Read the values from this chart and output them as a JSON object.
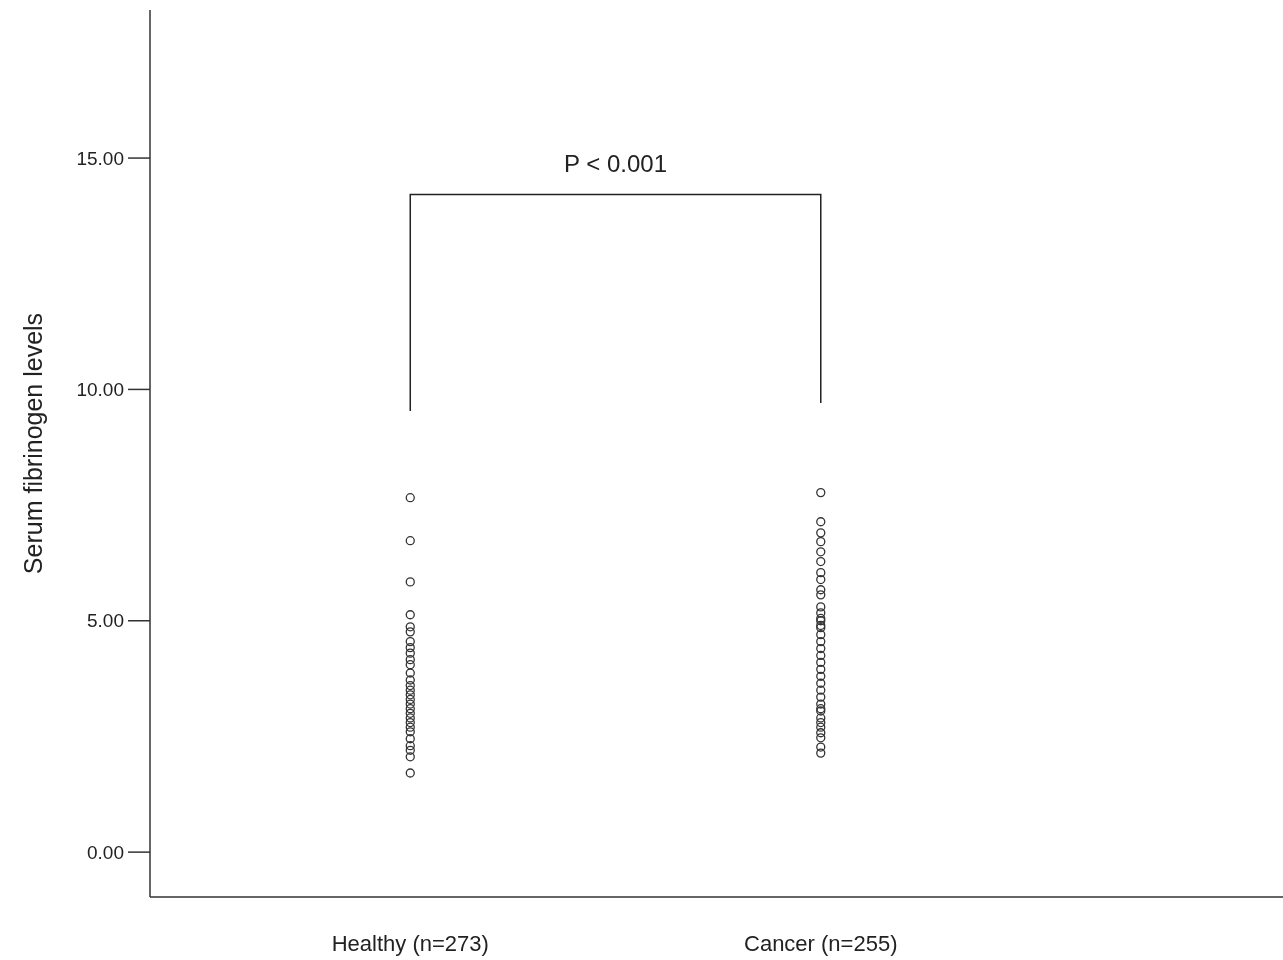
{
  "chart_data": {
    "type": "scatter",
    "ylabel": "Serum fibrinogen levels",
    "categories": [
      "Healthy (n=273)",
      "Cancer (n=255)"
    ],
    "ylim": [
      -0.97,
      18.2
    ],
    "yticks": [
      {
        "value": 0,
        "label": "0.00"
      },
      {
        "value": 5,
        "label": "5.00"
      },
      {
        "value": 10,
        "label": "10.00"
      },
      {
        "value": 15,
        "label": "15.00"
      }
    ],
    "marker": "circle",
    "annotations": [
      "P < 0.001"
    ],
    "series": [
      {
        "color": "#333333",
        "x": [
          "Healthy (n=273)",
          "Healthy (n=273)",
          "Healthy (n=273)",
          "Healthy (n=273)",
          "Healthy (n=273)",
          "Healthy (n=273)",
          "Healthy (n=273)",
          "Healthy (n=273)",
          "Healthy (n=273)",
          "Healthy (n=273)",
          "Healthy (n=273)",
          "Healthy (n=273)",
          "Healthy (n=273)",
          "Healthy (n=273)",
          "Healthy (n=273)",
          "Healthy (n=273)",
          "Healthy (n=273)",
          "Healthy (n=273)",
          "Healthy (n=273)",
          "Healthy (n=273)",
          "Healthy (n=273)",
          "Healthy (n=273)",
          "Healthy (n=273)",
          "Healthy (n=273)",
          "Healthy (n=273)",
          "Healthy (n=273)",
          "Healthy (n=273)",
          "Healthy (n=273)",
          "Healthy (n=273)"
        ],
        "values": [
          7.66,
          6.73,
          5.84,
          5.13,
          4.87,
          4.76,
          4.55,
          4.42,
          4.3,
          4.16,
          4.05,
          3.87,
          3.72,
          3.6,
          3.5,
          3.4,
          3.3,
          3.2,
          3.1,
          3.0,
          2.9,
          2.8,
          2.7,
          2.6,
          2.45,
          2.3,
          2.2,
          2.06,
          1.71
        ]
      },
      {
        "color": "#333333",
        "x": [
          "Cancer (n=255)",
          "Cancer (n=255)",
          "Cancer (n=255)",
          "Cancer (n=255)",
          "Cancer (n=255)",
          "Cancer (n=255)",
          "Cancer (n=255)",
          "Cancer (n=255)",
          "Cancer (n=255)",
          "Cancer (n=255)",
          "Cancer (n=255)",
          "Cancer (n=255)",
          "Cancer (n=255)",
          "Cancer (n=255)",
          "Cancer (n=255)",
          "Cancer (n=255)",
          "Cancer (n=255)",
          "Cancer (n=255)",
          "Cancer (n=255)",
          "Cancer (n=255)",
          "Cancer (n=255)",
          "Cancer (n=255)",
          "Cancer (n=255)",
          "Cancer (n=255)",
          "Cancer (n=255)",
          "Cancer (n=255)",
          "Cancer (n=255)",
          "Cancer (n=255)",
          "Cancer (n=255)",
          "Cancer (n=255)",
          "Cancer (n=255)",
          "Cancer (n=255)",
          "Cancer (n=255)",
          "Cancer (n=255)",
          "Cancer (n=255)",
          "Cancer (n=255)"
        ],
        "values": [
          7.77,
          7.14,
          6.9,
          6.71,
          6.49,
          6.28,
          6.04,
          5.89,
          5.67,
          5.56,
          5.3,
          5.17,
          5.0,
          4.85,
          4.7,
          4.55,
          4.4,
          4.25,
          4.1,
          3.95,
          3.8,
          3.65,
          3.5,
          3.35,
          3.2,
          3.05,
          2.9,
          2.8,
          2.7,
          2.58,
          2.47,
          2.27,
          2.14,
          3.1,
          4.9,
          5.05
        ]
      }
    ]
  }
}
